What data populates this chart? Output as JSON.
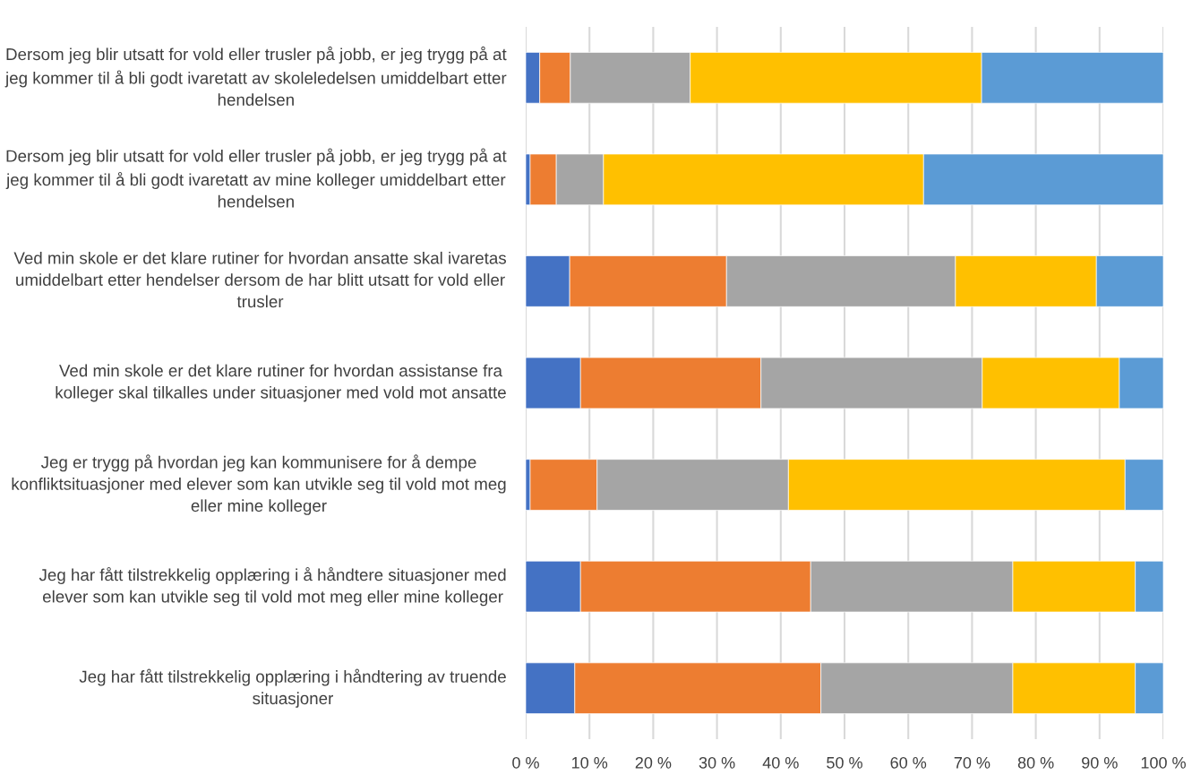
{
  "chart_data": {
    "type": "bar",
    "orientation": "horizontal",
    "stacked": true,
    "categories": [
      "Dersom jeg blir utsatt for vold eller trusler på jobb, er jeg trygg på at jeg kommer til å bli godt ivaretatt av skoleledelsen umiddelbart etter hendelsen",
      "Dersom jeg blir utsatt for vold eller trusler på jobb, er jeg trygg på at jeg kommer til å bli godt ivaretatt av mine kolleger umiddelbart etter hendelsen",
      "Ved min skole er det klare rutiner for hvordan ansatte skal ivaretas umiddelbart etter hendelser dersom de har blitt utsatt for vold eller trusler",
      "Ved min skole er det klare rutiner for hvordan assistanse fra kolleger skal tilkalles under situasjoner med vold mot ansatte",
      "Jeg er trygg på hvordan jeg kan kommunisere for å dempe konfliktsituasjoner med elever som kan utvikle seg til vold mot meg eller mine kolleger",
      "Jeg har fått tilstrekkelig opplæring i å håndtere situasjoner med elever som kan utvikle seg til vold mot meg eller mine kolleger",
      "Jeg har fått tilstrekkelig opplæring i håndtering av truende situasjoner"
    ],
    "series": [
      {
        "color": "#4472c4",
        "values": [
          2.2,
          0.7,
          6.9,
          8.6,
          0.7,
          8.6,
          7.7
        ]
      },
      {
        "color": "#ed7d31",
        "values": [
          4.8,
          4.1,
          24.6,
          28.3,
          10.5,
          36.1,
          38.6
        ]
      },
      {
        "color": "#a5a5a5",
        "values": [
          18.8,
          7.4,
          35.9,
          34.7,
          30.0,
          31.7,
          30.1
        ]
      },
      {
        "color": "#ffc000",
        "values": [
          45.7,
          50.2,
          22.1,
          21.5,
          52.8,
          19.2,
          19.2
        ]
      },
      {
        "color": "#5b9bd5",
        "values": [
          28.5,
          37.6,
          10.5,
          6.9,
          6.0,
          4.4,
          4.4
        ]
      }
    ],
    "xlim": [
      0,
      100
    ],
    "xticks": [
      {
        "value": 0,
        "label": "0 %"
      },
      {
        "value": 10,
        "label": "10 %"
      },
      {
        "value": 20,
        "label": "20 %"
      },
      {
        "value": 30,
        "label": "30 %"
      },
      {
        "value": 40,
        "label": "40 %"
      },
      {
        "value": 50,
        "label": "50 %"
      },
      {
        "value": 60,
        "label": "60 %"
      },
      {
        "value": 70,
        "label": "70 %"
      },
      {
        "value": 80,
        "label": "80 %"
      },
      {
        "value": 90,
        "label": "90 %"
      },
      {
        "value": 100,
        "label": "100 %"
      }
    ],
    "grid": "x",
    "legend": false
  }
}
